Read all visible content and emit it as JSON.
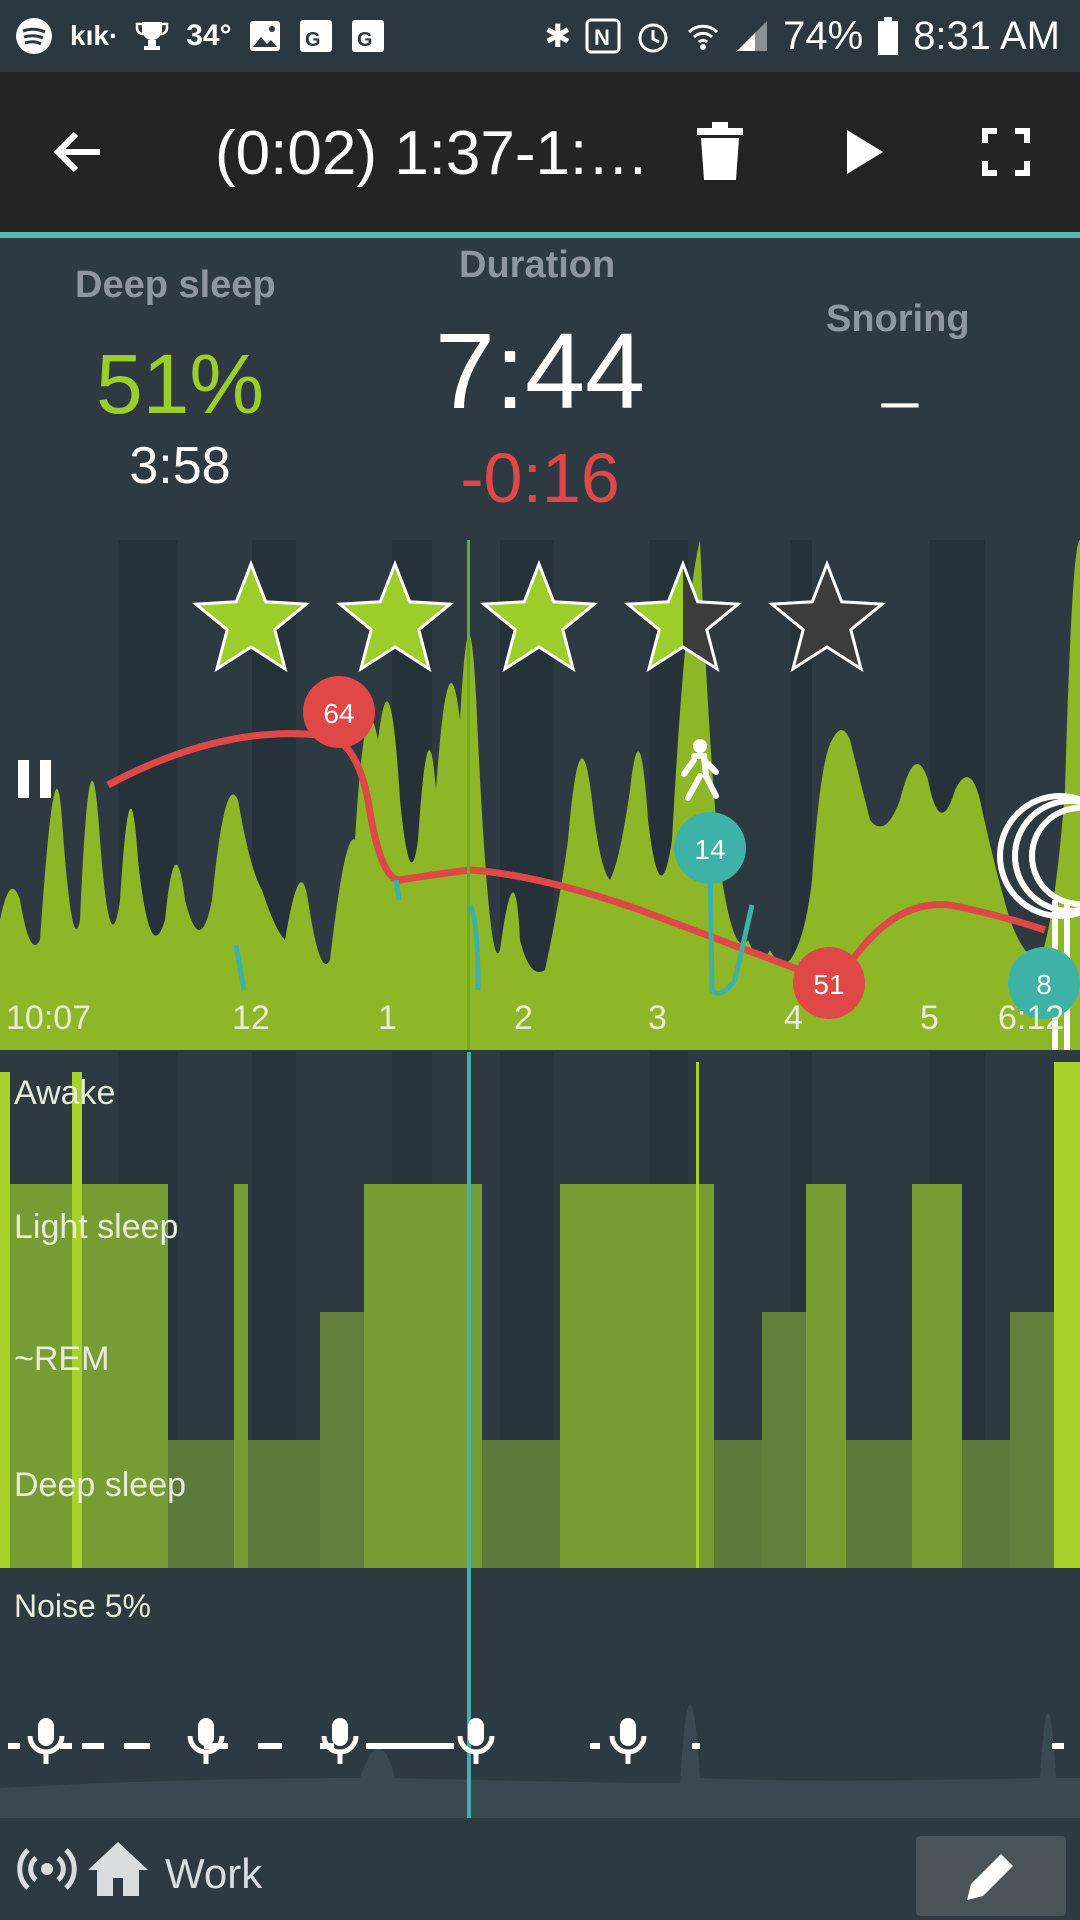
{
  "status_bar": {
    "left_icons": [
      "spotify-icon",
      "kik-icon",
      "trophy-icon",
      "image-icon",
      "maps-icon",
      "maps-icon"
    ],
    "temperature": "34°",
    "kik_label": "kık·",
    "right_icons": [
      "bluetooth-icon",
      "nfc-icon",
      "alarm-icon",
      "wifi-icon",
      "signal-icon",
      "battery-icon"
    ],
    "battery": "74%",
    "time": "8:31 AM"
  },
  "toolbar": {
    "title": "(0:02) 1:37-1:…",
    "buttons": [
      "back-icon",
      "delete-icon",
      "play-icon",
      "fullscreen-icon"
    ]
  },
  "stats": {
    "deep_sleep_label": "Deep sleep",
    "deep_sleep_percent": "51%",
    "deep_sleep_time": "3:58",
    "duration_label": "Duration",
    "duration_value": "7:44",
    "duration_delta": "-0:16",
    "snoring_label": "Snoring",
    "snoring_value": "_"
  },
  "rating": {
    "stars": 3.5,
    "max": 5
  },
  "actigraph": {
    "time_labels": [
      "10:07",
      "12",
      "1",
      "2",
      "3",
      "4",
      "5",
      "6:12"
    ],
    "hr_markers": [
      "64",
      "51"
    ],
    "spo2_markers": [
      "14",
      "8"
    ]
  },
  "hypnogram": {
    "labels": [
      "Awake",
      "Light sleep",
      "~REM",
      "Deep sleep"
    ]
  },
  "noise": {
    "label": "Noise 5%"
  },
  "bottom": {
    "tag": "Work"
  },
  "colors": {
    "accent": "#4fbdb2",
    "green": "#9ccd2a",
    "red": "#e04848",
    "teal": "#3fb2a8"
  }
}
